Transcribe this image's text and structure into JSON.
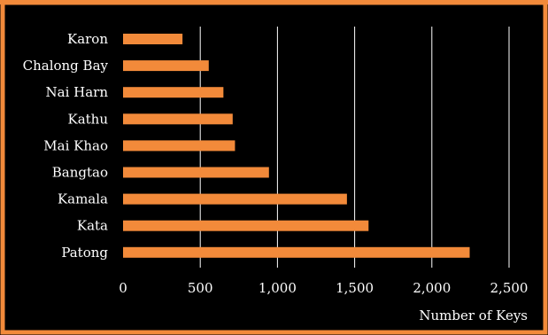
{
  "colors": {
    "background": "#000000",
    "frame": "#f28a3a",
    "bar": "#f28a3a",
    "grid": "#ffffff",
    "text": "#ffffff"
  },
  "chart_data": {
    "type": "bar",
    "orientation": "horizontal",
    "categories": [
      "Karon",
      "Chalong Bay",
      "Nai Harn",
      "Kathu",
      "Mai Khao",
      "Bangtao",
      "Kamala",
      "Kata",
      "Patong"
    ],
    "values": [
      385,
      555,
      650,
      710,
      725,
      945,
      1450,
      1590,
      2245
    ],
    "xlabel": "Number of Keys",
    "ylabel": "",
    "xlim": [
      0,
      2500
    ],
    "x_ticks": [
      0,
      500,
      1000,
      1500,
      2000,
      2500
    ],
    "x_tick_labels": [
      "0",
      "500",
      "1,000",
      "1,500",
      "2,000",
      "2,500"
    ],
    "grid": "vertical",
    "legend": "none"
  }
}
